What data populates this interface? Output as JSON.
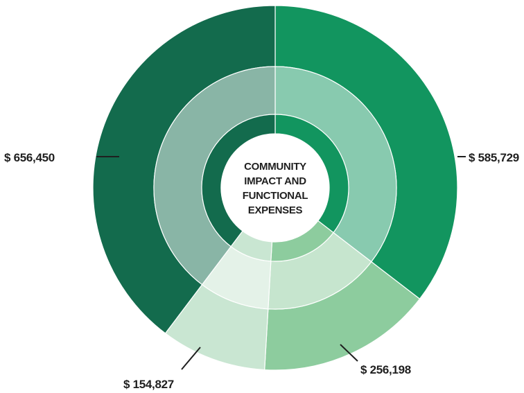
{
  "chart_data": {
    "type": "pie",
    "style": "layered donut (outer ring, translucent middle ring, inner ring)",
    "title_lines": [
      "COMMUNITY",
      "IMPACT AND",
      "FUNCTIONAL",
      "EXPENSES"
    ],
    "slices": [
      {
        "value": 585729,
        "label": "$ 585,729",
        "color": "#12955f",
        "label_side": "right"
      },
      {
        "value": 256198,
        "label": "$ 256,198",
        "color": "#8dcc9e",
        "label_side": "bottom-right"
      },
      {
        "value": 154827,
        "label": "$ 154,827",
        "color": "#c9e6d2",
        "label_side": "bottom-left"
      },
      {
        "value": 656450,
        "label": "$ 656,450",
        "color": "#136b4d",
        "label_side": "left"
      }
    ],
    "legend": "none",
    "grid": false
  }
}
